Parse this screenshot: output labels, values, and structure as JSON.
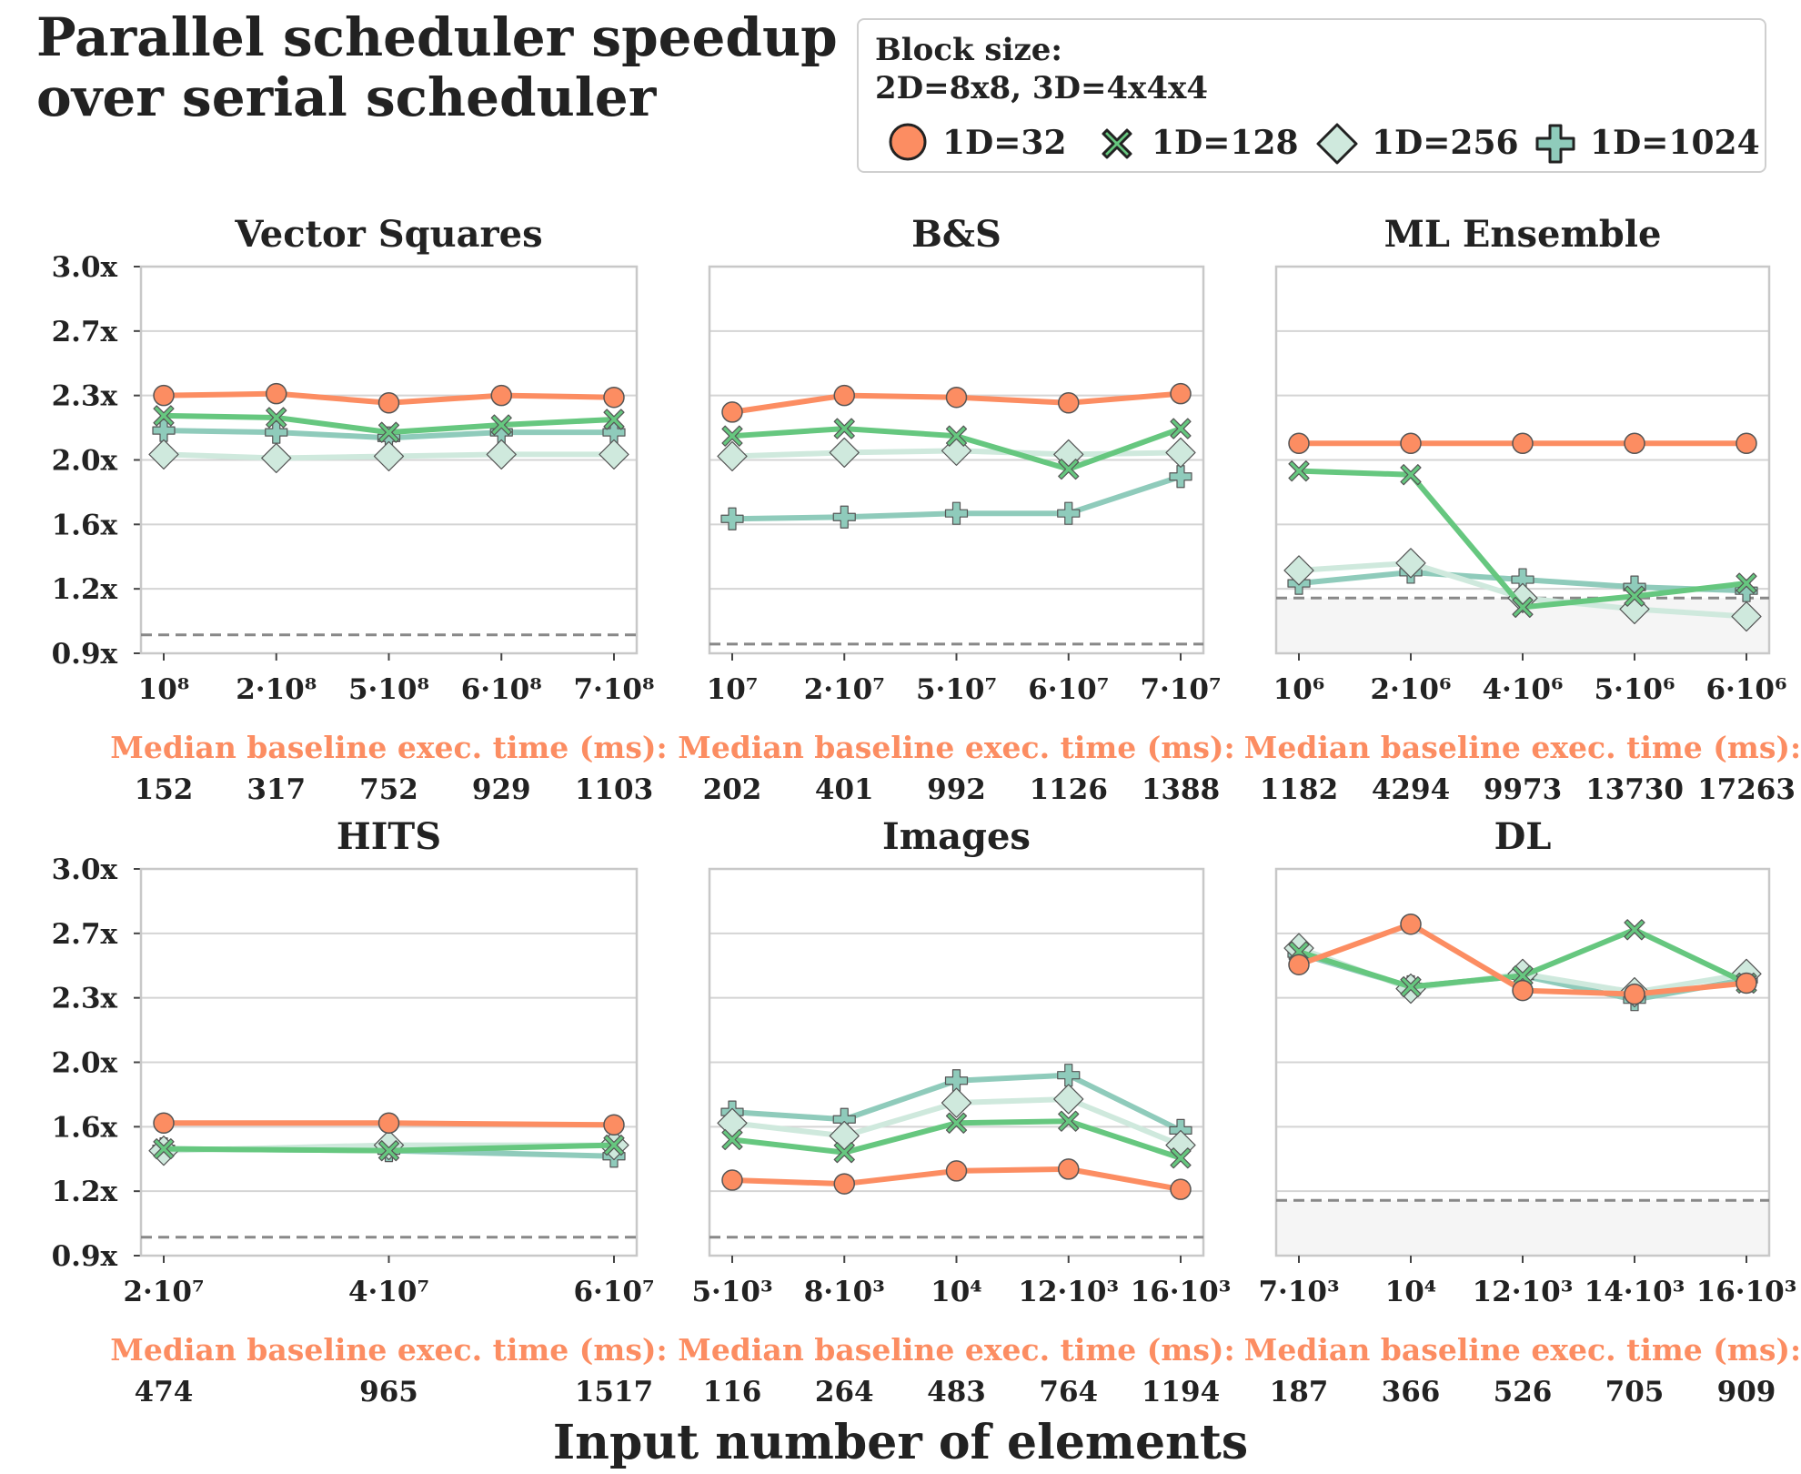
{
  "title": "Parallel scheduler speedup\nover serial scheduler",
  "legend": {
    "title": "Block size:\n2D=8x8, 3D=4x4x4",
    "items": [
      {
        "label": "1D=32",
        "marker": "circle",
        "color": "#fc8d62"
      },
      {
        "label": "1D=128",
        "marker": "x",
        "color": "#66c77f"
      },
      {
        "label": "1D=256",
        "marker": "diamond",
        "color": "#cfe9dd"
      },
      {
        "label": "1D=1024",
        "marker": "plus",
        "color": "#8fcbbb"
      }
    ]
  },
  "xlabel": "Input number of elements",
  "baseline_label": "Median baseline exec. time (ms):",
  "colors": {
    "1D=32": "#fc8d62",
    "1D=128": "#66c77f",
    "1D=256": "#cfe9dd",
    "1D=1024": "#8fcbbb",
    "baseline_label": "#fc8d62",
    "reference_line": "#888888"
  },
  "chart_data": [
    {
      "type": "line",
      "title": "Vector Squares",
      "categories": [
        "10⁸",
        "2·10⁸",
        "5·10⁸",
        "6·10⁸",
        "7·10⁸"
      ],
      "baseline_ms": [
        "152",
        "317",
        "752",
        "929",
        "1103"
      ],
      "ylim": [
        0.9,
        3.0
      ],
      "yticks": [
        "0.9x",
        "1.2x",
        "1.6x",
        "2.0x",
        "2.3x",
        "2.7x",
        "3.0x"
      ],
      "reference_line": 1.0,
      "shade_below_reference": false,
      "series": [
        {
          "name": "1D=32",
          "values": [
            2.3,
            2.31,
            2.26,
            2.3,
            2.29
          ]
        },
        {
          "name": "1D=128",
          "values": [
            2.19,
            2.18,
            2.1,
            2.14,
            2.17
          ]
        },
        {
          "name": "1D=256",
          "values": [
            1.98,
            1.96,
            1.97,
            1.98,
            1.98
          ]
        },
        {
          "name": "1D=1024",
          "values": [
            2.11,
            2.1,
            2.07,
            2.1,
            2.1
          ]
        }
      ]
    },
    {
      "type": "line",
      "title": "B&S",
      "categories": [
        "10⁷",
        "2·10⁷",
        "5·10⁷",
        "6·10⁷",
        "7·10⁷"
      ],
      "baseline_ms": [
        "202",
        "401",
        "992",
        "1126",
        "1388"
      ],
      "ylim": [
        0.9,
        3.0
      ],
      "yticks": [
        "0.9x",
        "1.2x",
        "1.6x",
        "2.0x",
        "2.3x",
        "2.7x",
        "3.0x"
      ],
      "reference_line": 0.95,
      "shade_below_reference": false,
      "series": [
        {
          "name": "1D=32",
          "values": [
            2.21,
            2.3,
            2.29,
            2.26,
            2.31
          ]
        },
        {
          "name": "1D=128",
          "values": [
            2.08,
            2.12,
            2.08,
            1.9,
            2.12
          ]
        },
        {
          "name": "1D=256",
          "values": [
            1.97,
            1.99,
            2.0,
            1.98,
            1.99
          ]
        },
        {
          "name": "1D=1024",
          "values": [
            1.63,
            1.64,
            1.66,
            1.66,
            1.86
          ]
        }
      ]
    },
    {
      "type": "line",
      "title": "ML Ensemble",
      "categories": [
        "10⁶",
        "2·10⁶",
        "4·10⁶",
        "5·10⁶",
        "6·10⁶"
      ],
      "baseline_ms": [
        "1182",
        "4294",
        "9973",
        "13730",
        "17263"
      ],
      "ylim": [
        0.9,
        3.0
      ],
      "yticks": [
        "0.9x",
        "1.2x",
        "1.6x",
        "2.0x",
        "2.3x",
        "2.7x",
        "3.0x"
      ],
      "reference_line": 1.2,
      "shade_below_reference": true,
      "series": [
        {
          "name": "1D=32",
          "values": [
            2.04,
            2.04,
            2.04,
            2.04,
            2.04
          ]
        },
        {
          "name": "1D=128",
          "values": [
            1.89,
            1.87,
            1.15,
            1.21,
            1.28
          ]
        },
        {
          "name": "1D=256",
          "values": [
            1.35,
            1.39,
            1.2,
            1.14,
            1.1
          ]
        },
        {
          "name": "1D=1024",
          "values": [
            1.28,
            1.34,
            1.3,
            1.26,
            1.24
          ]
        }
      ]
    },
    {
      "type": "line",
      "title": "HITS",
      "categories": [
        "2·10⁷",
        "4·10⁷",
        "6·10⁷"
      ],
      "baseline_ms": [
        "474",
        "965",
        "1517"
      ],
      "ylim": [
        0.9,
        3.0
      ],
      "yticks": [
        "0.9x",
        "1.2x",
        "1.6x",
        "2.0x",
        "2.3x",
        "2.7x",
        "3.0x"
      ],
      "reference_line": 1.0,
      "shade_below_reference": false,
      "series": [
        {
          "name": "1D=32",
          "values": [
            1.62,
            1.62,
            1.61
          ]
        },
        {
          "name": "1D=128",
          "values": [
            1.48,
            1.47,
            1.5
          ]
        },
        {
          "name": "1D=256",
          "values": [
            1.47,
            1.5,
            1.5
          ]
        },
        {
          "name": "1D=1024",
          "values": [
            1.48,
            1.47,
            1.44
          ]
        }
      ]
    },
    {
      "type": "line",
      "title": "Images",
      "categories": [
        "5·10³",
        "8·10³",
        "10⁴",
        "12·10³",
        "16·10³"
      ],
      "baseline_ms": [
        "116",
        "264",
        "483",
        "764",
        "1194"
      ],
      "ylim": [
        0.9,
        3.0
      ],
      "yticks": [
        "0.9x",
        "1.2x",
        "1.6x",
        "2.0x",
        "2.3x",
        "2.7x",
        "3.0x"
      ],
      "reference_line": 1.0,
      "shade_below_reference": false,
      "series": [
        {
          "name": "1D=32",
          "values": [
            1.31,
            1.29,
            1.36,
            1.37,
            1.26
          ]
        },
        {
          "name": "1D=128",
          "values": [
            1.53,
            1.46,
            1.62,
            1.63,
            1.43
          ]
        },
        {
          "name": "1D=256",
          "values": [
            1.62,
            1.55,
            1.73,
            1.75,
            1.5
          ]
        },
        {
          "name": "1D=1024",
          "values": [
            1.68,
            1.64,
            1.85,
            1.88,
            1.58
          ]
        }
      ]
    },
    {
      "type": "line",
      "title": "DL",
      "categories": [
        "7·10³",
        "10⁴",
        "12·10³",
        "14·10³",
        "16·10³"
      ],
      "baseline_ms": [
        "187",
        "366",
        "526",
        "705",
        "909"
      ],
      "ylim": [
        0.9,
        3.0
      ],
      "yticks": [
        "0.9x",
        "1.2x",
        "1.6x",
        "2.0x",
        "2.3x",
        "2.7x",
        "3.0x"
      ],
      "reference_line": 1.2,
      "shade_below_reference": true,
      "series": [
        {
          "name": "1D=32",
          "values": [
            2.48,
            2.7,
            2.34,
            2.32,
            2.38
          ]
        },
        {
          "name": "1D=128",
          "values": [
            2.55,
            2.36,
            2.42,
            2.67,
            2.38
          ]
        },
        {
          "name": "1D=256",
          "values": [
            2.57,
            2.35,
            2.43,
            2.33,
            2.43
          ]
        },
        {
          "name": "1D=1024",
          "values": [
            2.54,
            2.36,
            2.42,
            2.29,
            2.4
          ]
        }
      ]
    }
  ]
}
